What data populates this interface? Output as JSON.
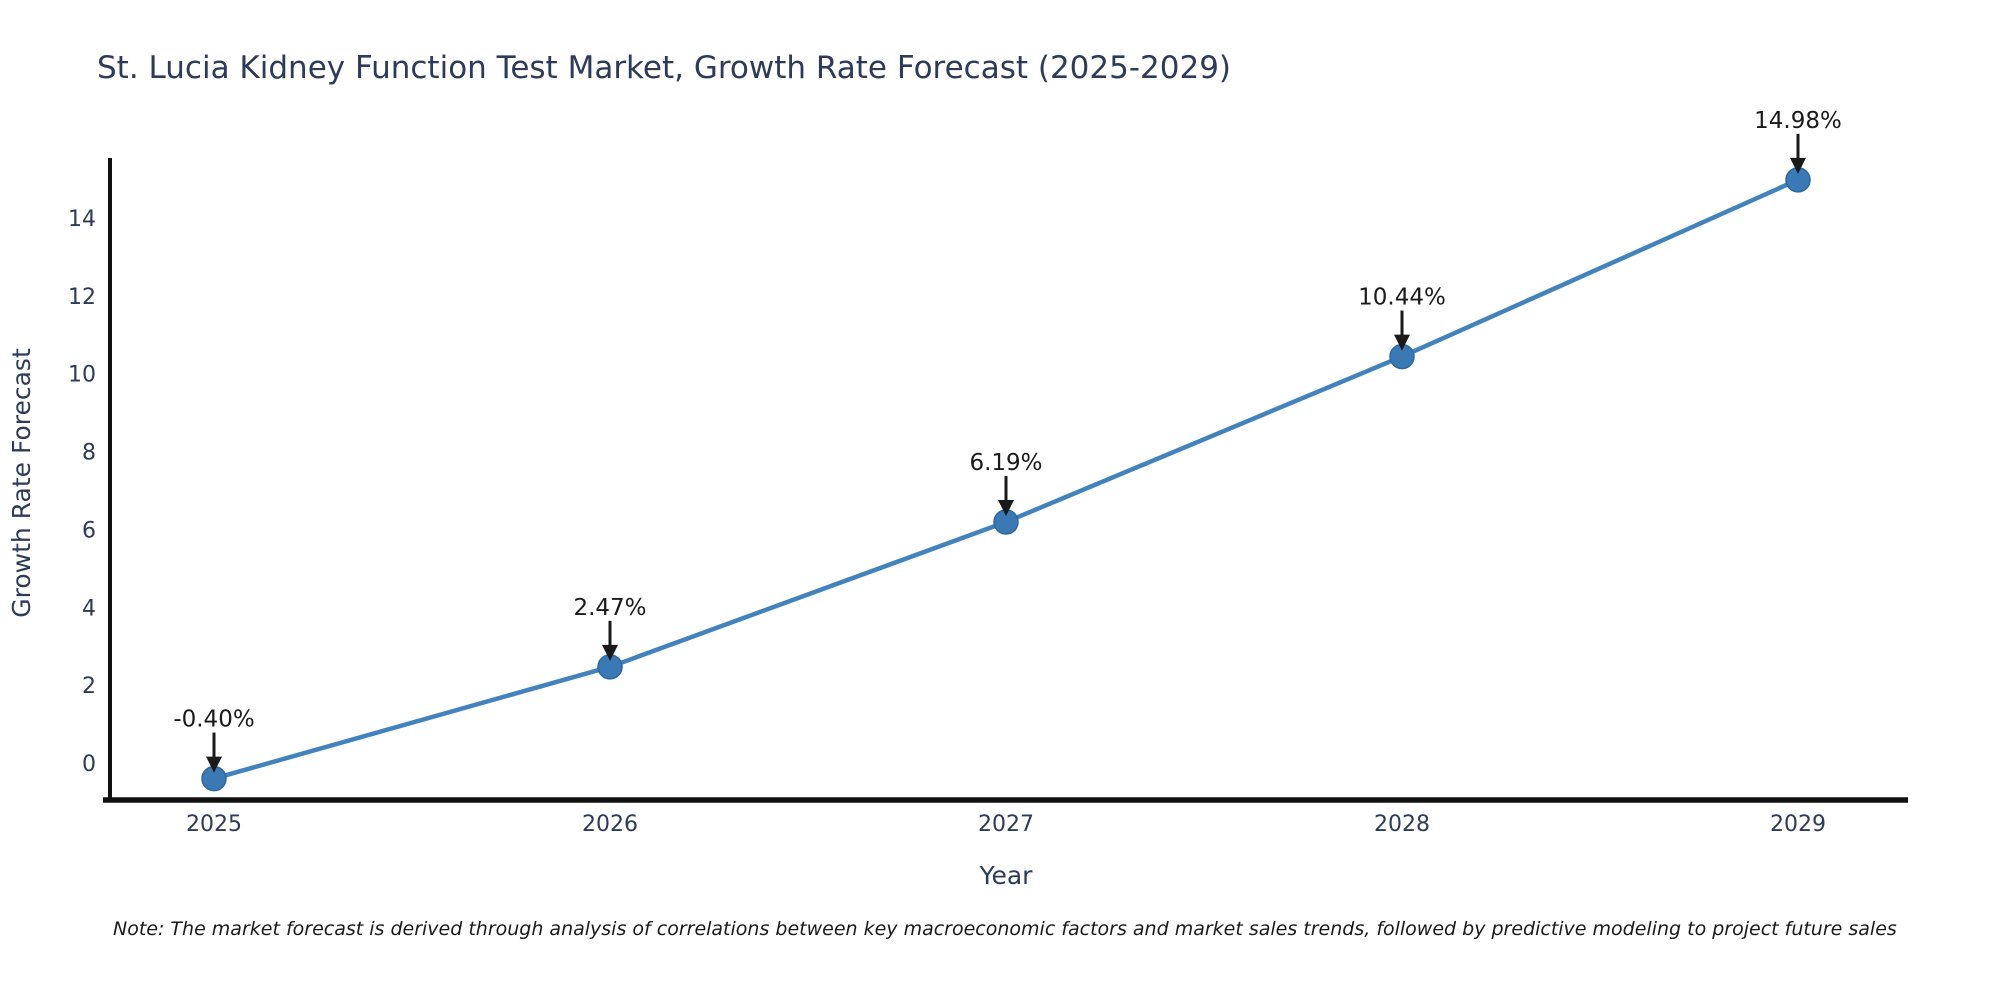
{
  "page": {
    "title": "St. Lucia Kidney Function Test Market, Growth Rate Forecast (2025-2029)",
    "note": "Note: The market forecast is derived through analysis of correlations between key macroeconomic factors and market sales trends, followed by predictive modeling to project future sales"
  },
  "chart_data": {
    "type": "line",
    "title": "St. Lucia Kidney Function Test Market, Growth Rate Forecast (2025-2029)",
    "xlabel": "Year",
    "ylabel": "Growth Rate Forecast",
    "x": [
      2025,
      2026,
      2027,
      2028,
      2029
    ],
    "series": [
      {
        "name": "Growth Rate Forecast",
        "values": [
          -0.4,
          2.47,
          6.19,
          10.44,
          14.98
        ]
      }
    ],
    "point_labels": [
      "-0.40%",
      "2.47%",
      "6.19%",
      "10.44%",
      "14.98%"
    ],
    "yticks": [
      0,
      2,
      4,
      6,
      8,
      10,
      12,
      14
    ],
    "ylim": [
      -0.95,
      15.55
    ],
    "grid": false,
    "legend": false,
    "note": "Note: The market forecast is derived through analysis of correlations between key macroeconomic factors and market sales trends, followed by predictive modeling to project future sales",
    "colors": {
      "line": "#4383bd",
      "marker_fill": "#3a79b3",
      "marker_edge": "#2d689e",
      "axis": "#111111",
      "arrow": "#1a1a1a",
      "heading_text": "#2e3b58",
      "annotation_text": "#1a1a1a"
    }
  }
}
